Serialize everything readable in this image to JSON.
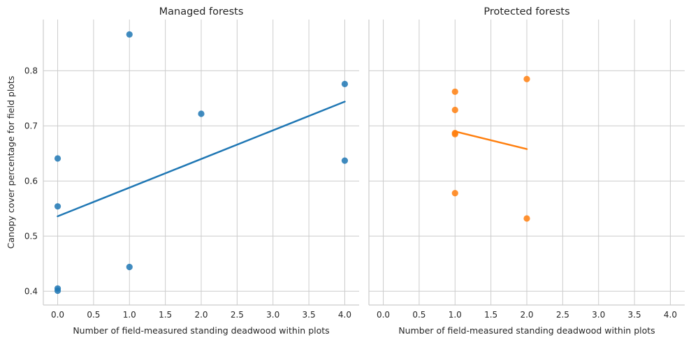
{
  "chart_data": [
    {
      "type": "scatter",
      "title": "Managed forests",
      "xlabel": "Number of field-measured standing deadwood within plots",
      "ylabel": "Canopy cover percentage for field plots",
      "xlim": [
        -0.2,
        4.2
      ],
      "ylim": [
        0.375,
        0.893
      ],
      "xticks": [
        "0.0",
        "0.5",
        "1.0",
        "1.5",
        "2.0",
        "2.5",
        "3.0",
        "3.5",
        "4.0"
      ],
      "yticks": [
        "0.4",
        "0.5",
        "0.6",
        "0.7",
        "0.8"
      ],
      "grid": true,
      "color": "#1f77b4",
      "points": [
        {
          "x": 0,
          "y": 0.641
        },
        {
          "x": 0,
          "y": 0.554
        },
        {
          "x": 0,
          "y": 0.405
        },
        {
          "x": 0,
          "y": 0.401
        },
        {
          "x": 1,
          "y": 0.866
        },
        {
          "x": 1,
          "y": 0.444
        },
        {
          "x": 2,
          "y": 0.722
        },
        {
          "x": 4,
          "y": 0.776
        },
        {
          "x": 4,
          "y": 0.637
        }
      ],
      "regression": {
        "x": [
          0,
          4
        ],
        "y": [
          0.536,
          0.744
        ]
      }
    },
    {
      "type": "scatter",
      "title": "Protected forests",
      "xlabel": "Number of field-measured standing deadwood within plots",
      "ylabel": "",
      "xlim": [
        -0.2,
        4.2
      ],
      "ylim": [
        0.375,
        0.893
      ],
      "xticks": [
        "0.0",
        "0.5",
        "1.0",
        "1.5",
        "2.0",
        "2.5",
        "3.0",
        "3.5",
        "4.0"
      ],
      "yticks": [],
      "grid": true,
      "color": "#ff7f0e",
      "points": [
        {
          "x": 1,
          "y": 0.762
        },
        {
          "x": 1,
          "y": 0.729
        },
        {
          "x": 1,
          "y": 0.687
        },
        {
          "x": 1,
          "y": 0.685
        },
        {
          "x": 1,
          "y": 0.578
        },
        {
          "x": 2,
          "y": 0.785
        },
        {
          "x": 2,
          "y": 0.532
        }
      ],
      "regression": {
        "x": [
          1,
          2
        ],
        "y": [
          0.69,
          0.658
        ]
      }
    }
  ]
}
